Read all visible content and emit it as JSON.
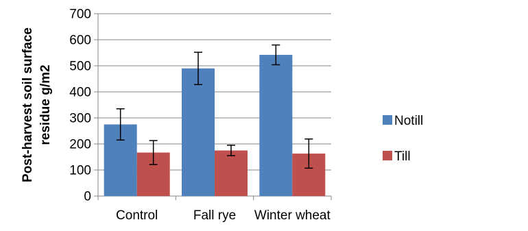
{
  "chart_data": {
    "type": "bar",
    "title": "",
    "xlabel": "",
    "ylabel_lines": [
      "Post-harvest soil surface",
      "residue g/m2"
    ],
    "categories": [
      "Control",
      "Fall rye",
      "Winter wheat"
    ],
    "ylim": [
      0,
      700
    ],
    "yticks": [
      0,
      100,
      200,
      300,
      400,
      500,
      600,
      700
    ],
    "grid": true,
    "legend_position": "right",
    "series": [
      {
        "name": "Notill",
        "color": "#4F81BD",
        "values": [
          275,
          490,
          542
        ],
        "errors": [
          60,
          62,
          38
        ]
      },
      {
        "name": "Till",
        "color": "#C0504D",
        "values": [
          167,
          175,
          163
        ],
        "errors": [
          46,
          20,
          56
        ]
      }
    ]
  }
}
